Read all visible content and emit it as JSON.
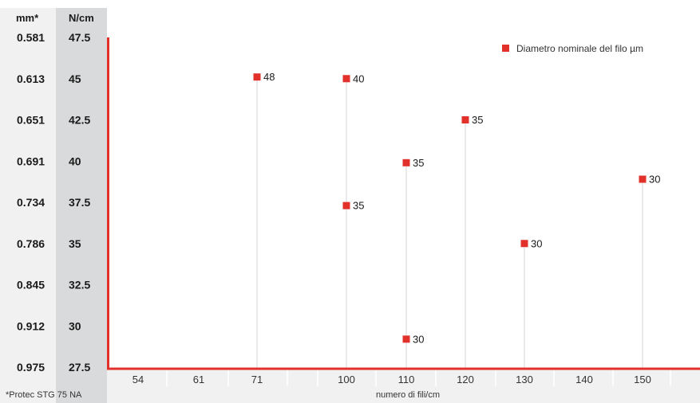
{
  "chart_data": {
    "type": "scatter",
    "xlabel": "numero di fili/cm",
    "left_axis_header": "mm*",
    "right_axis_header": "N/cm",
    "footnote": "*Protec STG 75 NA",
    "legend": "Diametro nominale del filo µm",
    "x_categories": [
      "54",
      "61",
      "71",
      "100",
      "110",
      "120",
      "130",
      "140",
      "150"
    ],
    "y_ticks": [
      47.5,
      45,
      42.5,
      40,
      37.5,
      35,
      32.5,
      30,
      27.5
    ],
    "y_ticks_mm": [
      "0.581",
      "0.613",
      "0.651",
      "0.691",
      "0.734",
      "0.786",
      "0.845",
      "0.912",
      "0.975"
    ],
    "ylim": [
      27.5,
      47.5
    ],
    "grid": false,
    "legend_position": "top-right",
    "points": [
      {
        "x": "71",
        "y": 45.1,
        "label": "48"
      },
      {
        "x": "100",
        "y": 45.0,
        "label": "40"
      },
      {
        "x": "120",
        "y": 42.5,
        "label": "35"
      },
      {
        "x": "110",
        "y": 39.9,
        "label": "35"
      },
      {
        "x": "150",
        "y": 38.9,
        "label": "30"
      },
      {
        "x": "100",
        "y": 37.3,
        "label": "35"
      },
      {
        "x": "130",
        "y": 35.0,
        "label": "30"
      },
      {
        "x": "110",
        "y": 29.2,
        "label": "30"
      }
    ]
  },
  "colors": {
    "marker": "#e2312a",
    "axis": "#e2312a",
    "panel_bg": "#f1f1f2",
    "n_column_bg": "#d9dadb"
  }
}
